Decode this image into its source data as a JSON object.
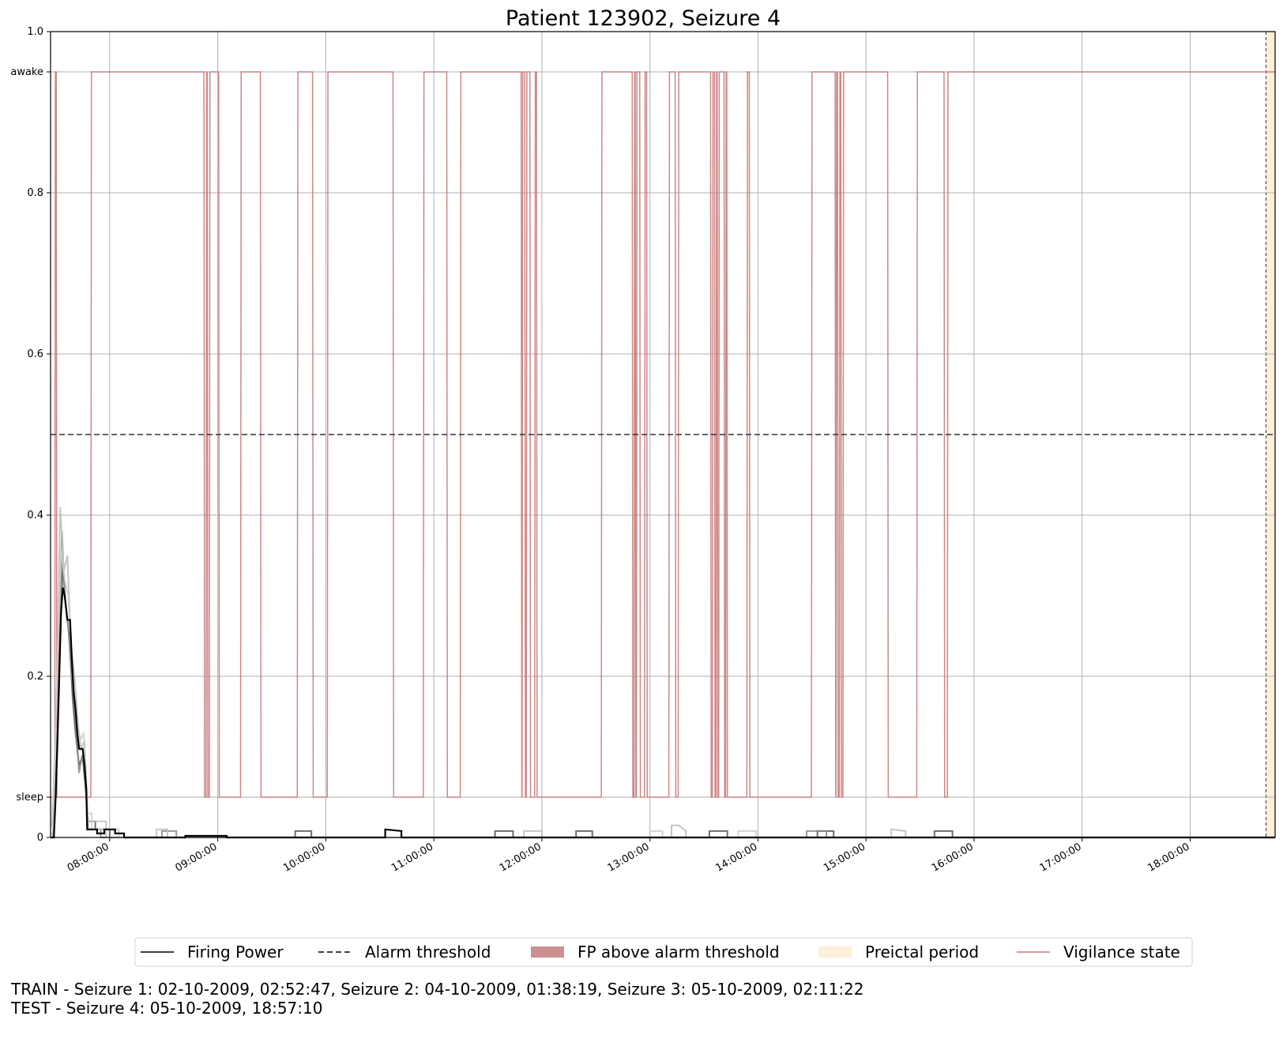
{
  "chart_data": {
    "type": "line",
    "title": "Patient 123902, Seizure 4",
    "xlabel": "",
    "ylabel": "",
    "x_range": [
      "07:27:10",
      "18:47:10"
    ],
    "ylim": [
      0,
      1.0
    ],
    "x_ticks": [
      "08:00:00",
      "09:00:00",
      "10:00:00",
      "11:00:00",
      "12:00:00",
      "13:00:00",
      "14:00:00",
      "15:00:00",
      "16:00:00",
      "17:00:00",
      "18:00:00"
    ],
    "y_ticks": [
      {
        "value": 0,
        "label": "0"
      },
      {
        "value": 0.05,
        "label": "sleep"
      },
      {
        "value": 0.2,
        "label": "0.2"
      },
      {
        "value": 0.4,
        "label": "0.4"
      },
      {
        "value": 0.6,
        "label": "0.6"
      },
      {
        "value": 0.8,
        "label": "0.8"
      },
      {
        "value": 0.95,
        "label": "awake"
      },
      {
        "value": 1.0,
        "label": "1.0"
      }
    ],
    "grid": true,
    "legend_position": "bottom-center",
    "legend": [
      {
        "label": "Firing Power",
        "style": "solid-line",
        "color": "#000000"
      },
      {
        "label": "Alarm threshold",
        "style": "dashed-line",
        "color": "#000000"
      },
      {
        "label": "FP above alarm threshold",
        "style": "patch",
        "color": "#cc9090"
      },
      {
        "label": "Preictal period",
        "style": "patch",
        "color": "#fdefd9"
      },
      {
        "label": "Vigilance state",
        "style": "solid-line",
        "color": "#c87a7a"
      }
    ],
    "alarm_threshold": 0.5,
    "preictal_period": {
      "start": "18:42:10",
      "end": "18:47:10"
    },
    "vigilance_state": {
      "levels": {
        "sleep": 0.05,
        "awake": 0.95
      },
      "initial": "sleep",
      "switch_times": [
        "07:29:30",
        "07:30:20",
        "07:49:30",
        "08:52:20",
        "08:53:30",
        "08:54:10",
        "08:55:20",
        "09:00:30",
        "09:12:40",
        "09:23:40",
        "09:44:10",
        "09:52:40",
        "10:00:50",
        "10:37:20",
        "10:54:10",
        "11:07:10",
        "11:14:40",
        "11:48:30",
        "11:49:00",
        "11:50:30",
        "11:51:20",
        "11:53:20",
        "11:56:00",
        "11:57:00",
        "12:33:00",
        "12:50:10",
        "12:51:10",
        "12:51:50",
        "12:52:30",
        "12:54:20",
        "12:57:00",
        "12:58:10",
        "13:10:30",
        "13:14:00",
        "13:15:40",
        "13:33:40",
        "13:34:40",
        "13:35:50",
        "13:36:40",
        "13:37:20",
        "13:38:10",
        "13:41:10",
        "13:42:00",
        "13:42:40",
        "13:53:50",
        "13:55:10",
        "14:29:40",
        "14:42:50",
        "14:43:20",
        "14:44:10",
        "14:45:10",
        "14:46:00",
        "14:47:10",
        "15:12:00",
        "15:28:10",
        "15:43:20",
        "15:45:10",
        "18:47:10"
      ]
    },
    "firing_power": {
      "main": [
        [
          "07:27:10",
          0
        ],
        [
          "07:29:00",
          0
        ],
        [
          "07:30:00",
          0.05
        ],
        [
          "07:31:00",
          0.12
        ],
        [
          "07:32:00",
          0.2
        ],
        [
          "07:33:00",
          0.28
        ],
        [
          "07:34:00",
          0.31
        ],
        [
          "07:35:00",
          0.3
        ],
        [
          "07:36:30",
          0.27
        ],
        [
          "07:38:00",
          0.27
        ],
        [
          "07:39:00",
          0.22
        ],
        [
          "07:40:00",
          0.18
        ],
        [
          "07:41:00",
          0.16
        ],
        [
          "07:42:00",
          0.13
        ],
        [
          "07:43:00",
          0.11
        ],
        [
          "07:45:00",
          0.11
        ],
        [
          "07:46:00",
          0.09
        ],
        [
          "07:47:00",
          0.06
        ],
        [
          "07:47:30",
          0.01
        ],
        [
          "07:53:00",
          0.01
        ],
        [
          "07:53:00",
          0.005
        ],
        [
          "07:57:00",
          0.005
        ],
        [
          "07:57:00",
          0.01
        ],
        [
          "08:03:00",
          0.01
        ],
        [
          "08:03:00",
          0.005
        ],
        [
          "08:08:00",
          0.005
        ],
        [
          "08:08:00",
          0
        ],
        [
          "08:42:00",
          0
        ],
        [
          "08:42:00",
          0.002
        ],
        [
          "09:05:00",
          0.002
        ],
        [
          "09:05:00",
          0
        ],
        [
          "10:33:00",
          0
        ],
        [
          "10:33:00",
          0.01
        ],
        [
          "10:42:00",
          0.008
        ],
        [
          "10:42:00",
          0
        ],
        [
          "18:47:10",
          0
        ]
      ],
      "runs": [
        {
          "shade": "#555555",
          "points": [
            [
              "07:27:10",
              0
            ],
            [
              "07:29:00",
              0
            ],
            [
              "07:31:00",
              0.15
            ],
            [
              "07:32:30",
              0.25
            ],
            [
              "07:34:00",
              0.34
            ],
            [
              "07:35:30",
              0.29
            ],
            [
              "07:37:30",
              0.25
            ],
            [
              "07:39:30",
              0.17
            ],
            [
              "07:41:00",
              0.13
            ],
            [
              "07:43:00",
              0.09
            ],
            [
              "07:45:00",
              0.1
            ],
            [
              "07:47:00",
              0.05
            ],
            [
              "07:48:00",
              0.02
            ],
            [
              "07:52:00",
              0.02
            ],
            [
              "07:52:00",
              0.01
            ],
            [
              "08:00:00",
              0.01
            ],
            [
              "08:00:00",
              0
            ],
            [
              "09:43:00",
              0
            ],
            [
              "09:43:00",
              0.008
            ],
            [
              "09:52:00",
              0.008
            ],
            [
              "09:52:00",
              0
            ],
            [
              "11:34:00",
              0
            ],
            [
              "11:34:00",
              0.008
            ],
            [
              "11:44:00",
              0.008
            ],
            [
              "11:44:00",
              0
            ],
            [
              "12:19:00",
              0
            ],
            [
              "12:19:00",
              0.008
            ],
            [
              "12:28:00",
              0.008
            ],
            [
              "12:28:00",
              0
            ],
            [
              "13:33:00",
              0
            ],
            [
              "13:33:00",
              0.008
            ],
            [
              "13:43:00",
              0.008
            ],
            [
              "13:43:00",
              0
            ],
            [
              "14:33:00",
              0
            ],
            [
              "14:33:00",
              0.008
            ],
            [
              "14:42:00",
              0.008
            ],
            [
              "14:42:00",
              0
            ],
            [
              "15:38:00",
              0
            ],
            [
              "15:38:00",
              0.008
            ],
            [
              "15:48:00",
              0.008
            ],
            [
              "15:48:00",
              0
            ],
            [
              "18:47:10",
              0
            ]
          ]
        },
        {
          "shade": "#888888",
          "points": [
            [
              "07:27:10",
              0
            ],
            [
              "07:28:30",
              0
            ],
            [
              "07:30:30",
              0.14
            ],
            [
              "07:32:00",
              0.24
            ],
            [
              "07:33:30",
              0.38
            ],
            [
              "07:35:00",
              0.3
            ],
            [
              "07:37:00",
              0.26
            ],
            [
              "07:39:00",
              0.2
            ],
            [
              "07:41:00",
              0.15
            ],
            [
              "07:43:00",
              0.08
            ],
            [
              "07:44:30",
              0.1
            ],
            [
              "07:46:30",
              0.09
            ],
            [
              "07:48:00",
              0.01
            ],
            [
              "07:55:00",
              0.01
            ],
            [
              "07:55:00",
              0
            ],
            [
              "08:29:00",
              0
            ],
            [
              "08:29:00",
              0.008
            ],
            [
              "08:37:00",
              0.008
            ],
            [
              "08:37:00",
              0
            ],
            [
              "14:27:00",
              0
            ],
            [
              "14:27:00",
              0.008
            ],
            [
              "14:38:00",
              0.008
            ],
            [
              "14:38:00",
              0
            ],
            [
              "18:47:10",
              0
            ]
          ]
        },
        {
          "shade": "#bbbbbb",
          "points": [
            [
              "07:27:10",
              0.015
            ],
            [
              "07:28:00",
              0.015
            ],
            [
              "07:29:30",
              0.1
            ],
            [
              "07:31:00",
              0.22
            ],
            [
              "07:32:30",
              0.41
            ],
            [
              "07:34:30",
              0.33
            ],
            [
              "07:36:30",
              0.35
            ],
            [
              "07:38:30",
              0.24
            ],
            [
              "07:40:30",
              0.2
            ],
            [
              "07:42:30",
              0.14
            ],
            [
              "07:44:00",
              0.11
            ],
            [
              "07:46:00",
              0.12
            ],
            [
              "07:48:00",
              0.02
            ],
            [
              "07:58:00",
              0.02
            ],
            [
              "07:58:00",
              0
            ],
            [
              "08:26:00",
              0
            ],
            [
              "08:26:00",
              0.01
            ],
            [
              "08:32:00",
              0.01
            ],
            [
              "08:32:00",
              0
            ],
            [
              "11:50:00",
              0
            ],
            [
              "11:50:00",
              0.008
            ],
            [
              "12:00:00",
              0.008
            ],
            [
              "12:00:00",
              0
            ],
            [
              "13:12:00",
              0
            ],
            [
              "13:12:00",
              0.015
            ],
            [
              "13:16:00",
              0.015
            ],
            [
              "13:20:00",
              0.008
            ],
            [
              "13:20:00",
              0
            ],
            [
              "15:14:00",
              0
            ],
            [
              "15:14:00",
              0.01
            ],
            [
              "15:22:00",
              0.008
            ],
            [
              "15:22:00",
              0
            ],
            [
              "18:47:10",
              0
            ]
          ]
        },
        {
          "shade": "#cccccc",
          "points": [
            [
              "07:27:10",
              0.005
            ],
            [
              "07:28:30",
              0.005
            ],
            [
              "07:30:00",
              0.12
            ],
            [
              "07:31:30",
              0.26
            ],
            [
              "07:33:00",
              0.36
            ],
            [
              "07:35:00",
              0.32
            ],
            [
              "07:37:00",
              0.3
            ],
            [
              "07:39:00",
              0.22
            ],
            [
              "07:41:30",
              0.16
            ],
            [
              "07:43:30",
              0.12
            ],
            [
              "07:45:30",
              0.13
            ],
            [
              "07:47:30",
              0.03
            ],
            [
              "07:50:00",
              0.03
            ],
            [
              "07:50:00",
              0.01
            ],
            [
              "08:05:00",
              0.01
            ],
            [
              "08:05:00",
              0
            ],
            [
              "13:00:00",
              0
            ],
            [
              "13:00:00",
              0.008
            ],
            [
              "13:07:00",
              0.008
            ],
            [
              "13:07:00",
              0
            ],
            [
              "13:49:00",
              0
            ],
            [
              "13:49:00",
              0.008
            ],
            [
              "13:59:00",
              0.008
            ],
            [
              "13:59:00",
              0
            ],
            [
              "18:47:10",
              0
            ]
          ]
        }
      ]
    }
  },
  "footer": {
    "line1": "TRAIN - Seizure 1: 02-10-2009, 02:52:47, Seizure 2: 04-10-2009, 01:38:19, Seizure 3: 05-10-2009, 02:11:22",
    "line2": "TEST - Seizure 4: 05-10-2009, 18:57:10"
  }
}
